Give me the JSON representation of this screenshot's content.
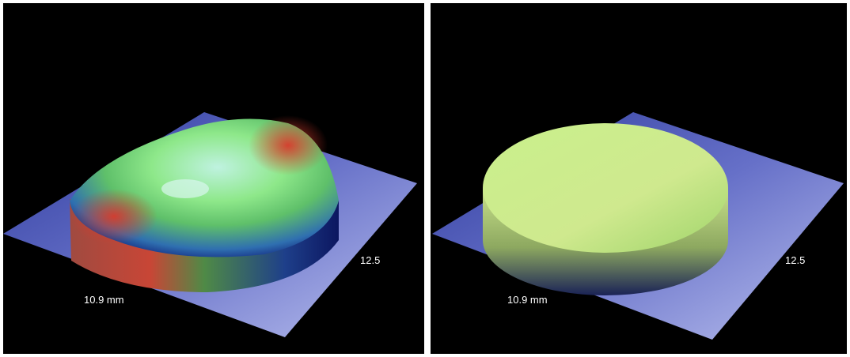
{
  "panels": [
    {
      "labels": [
        "10.9 mm",
        "12.5"
      ]
    },
    {
      "labels": [
        "10.9 mm",
        "12.5"
      ]
    }
  ]
}
